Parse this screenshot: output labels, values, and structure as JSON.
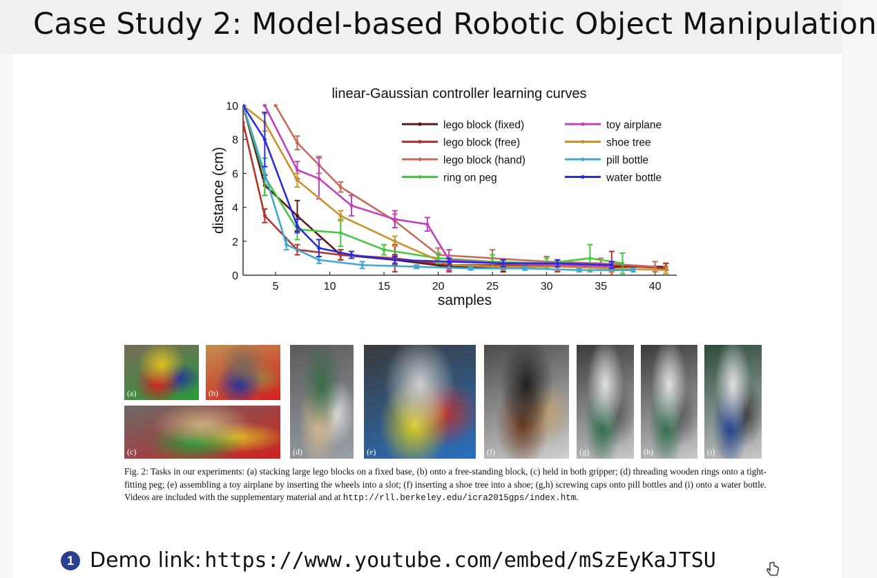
{
  "slide": {
    "title": "Case Study 2: Model-based Robotic Object Manipulation"
  },
  "chart_data": {
    "type": "line",
    "title": "linear-Gaussian controller learning curves",
    "xlabel": "samples",
    "ylabel": "distance (cm)",
    "xlim": [
      2,
      42
    ],
    "ylim": [
      0,
      10
    ],
    "xticks": [
      5,
      10,
      15,
      20,
      25,
      30,
      35,
      40
    ],
    "yticks": [
      0,
      2,
      4,
      6,
      8,
      10
    ],
    "grid": false,
    "legend_position": "top-right",
    "series": [
      {
        "name": "lego block (fixed)",
        "color": "#5c1a14",
        "points": [
          [
            2,
            10
          ],
          [
            4,
            5.3
          ],
          [
            7,
            3.5
          ],
          [
            11,
            1.2
          ],
          [
            16,
            0.9
          ],
          [
            21,
            0.5
          ],
          [
            26,
            0.4
          ],
          [
            31,
            0.6
          ],
          [
            36,
            0.5
          ],
          [
            41,
            0.5
          ]
        ],
        "err": [
          0,
          0.6,
          0.9,
          0.3,
          0.3,
          0.2,
          0.2,
          0.3,
          0.3,
          0.2
        ]
      },
      {
        "name": "lego block (free)",
        "color": "#b8302a",
        "points": [
          [
            2,
            9
          ],
          [
            4,
            3.5
          ],
          [
            7,
            1.5
          ],
          [
            11,
            1.2
          ],
          [
            16,
            1.0
          ],
          [
            21,
            0.6
          ],
          [
            26,
            0.6
          ],
          [
            31,
            0.5
          ],
          [
            36,
            0.6
          ],
          [
            41,
            0.4
          ]
        ],
        "err": [
          0.5,
          0.4,
          0.3,
          0.3,
          0.8,
          0.4,
          0.3,
          0.3,
          0.8,
          0.3
        ]
      },
      {
        "name": "lego block (hand)",
        "color": "#c86a5a",
        "points": [
          [
            5,
            10
          ],
          [
            7,
            7.8
          ],
          [
            9,
            6.5
          ],
          [
            11,
            5.2
          ],
          [
            16,
            3.2
          ],
          [
            20,
            1.2
          ],
          [
            25,
            1.0
          ],
          [
            30,
            0.8
          ],
          [
            35,
            0.7
          ],
          [
            40,
            0.5
          ]
        ],
        "err": [
          0,
          0.4,
          0.5,
          0.3,
          0.4,
          0.4,
          0.5,
          0.3,
          0.3,
          0.3
        ]
      },
      {
        "name": "ring on peg",
        "color": "#45c840",
        "points": [
          [
            2,
            10
          ],
          [
            4,
            5.8
          ],
          [
            7,
            2.7
          ],
          [
            11,
            2.5
          ],
          [
            15,
            1.5
          ],
          [
            20,
            1.0
          ],
          [
            25,
            0.8
          ],
          [
            30,
            0.7
          ],
          [
            34,
            1.0
          ],
          [
            37,
            0.7
          ]
        ],
        "err": [
          0,
          1.1,
          0.6,
          0.8,
          0.3,
          0.3,
          0.4,
          0.3,
          0.8,
          0.6
        ]
      },
      {
        "name": "toy airplane",
        "color": "#c040c0",
        "points": [
          [
            4,
            10
          ],
          [
            7,
            6.2
          ],
          [
            9,
            5.7
          ],
          [
            12,
            4.1
          ],
          [
            16,
            3.3
          ],
          [
            19,
            3.0
          ],
          [
            21,
            0.9
          ],
          [
            26,
            0.7
          ],
          [
            31,
            0.6
          ],
          [
            36,
            0.5
          ]
        ],
        "err": [
          0,
          0.5,
          1.2,
          0.6,
          0.5,
          0.4,
          0.6,
          0.2,
          0.3,
          0.2
        ]
      },
      {
        "name": "shoe tree",
        "color": "#c8922a",
        "points": [
          [
            2,
            10
          ],
          [
            4,
            9
          ],
          [
            7,
            5.6
          ],
          [
            11,
            3.5
          ],
          [
            16,
            2.0
          ],
          [
            21,
            0.6
          ],
          [
            26,
            0.5
          ],
          [
            31,
            0.5
          ],
          [
            36,
            0.4
          ],
          [
            41,
            0.3
          ]
        ],
        "err": [
          0,
          0.5,
          0.4,
          0.3,
          0.3,
          0.2,
          0.2,
          0.2,
          0.2,
          0.2
        ]
      },
      {
        "name": "pill bottle",
        "color": "#40a8d0",
        "points": [
          [
            2,
            10
          ],
          [
            4,
            6
          ],
          [
            6,
            1.8
          ],
          [
            9,
            0.9
          ],
          [
            13,
            0.6
          ],
          [
            18,
            0.5
          ],
          [
            23,
            0.4
          ],
          [
            28,
            0.4
          ],
          [
            33,
            0.3
          ],
          [
            38,
            0.3
          ]
        ],
        "err": [
          0,
          0.4,
          0.3,
          0.2,
          0.2,
          0.1,
          0.1,
          0.1,
          0.1,
          0.1
        ]
      },
      {
        "name": "water bottle",
        "color": "#2a2ae0",
        "points": [
          [
            2,
            10
          ],
          [
            4,
            8
          ],
          [
            7,
            2.9
          ],
          [
            9,
            1.6
          ],
          [
            12,
            1.2
          ],
          [
            16,
            0.9
          ],
          [
            21,
            0.8
          ],
          [
            26,
            0.7
          ],
          [
            31,
            0.7
          ],
          [
            36,
            0.6
          ]
        ],
        "err": [
          0,
          1.6,
          0.4,
          0.5,
          0.2,
          0.2,
          0.2,
          0.2,
          0.2,
          0.2
        ]
      }
    ]
  },
  "photos": [
    {
      "label": "(a)",
      "colors": [
        "#7a6a5a",
        "#2a9a3a",
        "#d02020",
        "#e0c020",
        "#2030a0"
      ]
    },
    {
      "label": "(b)",
      "colors": [
        "#c09050",
        "#d02020",
        "#2030a0",
        "#7a6a5a",
        "#a08040"
      ]
    },
    {
      "label": "(c)",
      "colors": [
        "#6a6a6a",
        "#d02020",
        "#2a9a3a",
        "#c8b080",
        "#e0c020"
      ]
    },
    {
      "label": "(d)",
      "colors": [
        "#5a5a5a",
        "#9aa0a6",
        "#d8b890",
        "#3a6a4a",
        "#e0e0e0"
      ]
    },
    {
      "label": "(e)",
      "colors": [
        "#3a3a3a",
        "#2a70c0",
        "#e0d020",
        "#d0d0d0",
        "#c03030"
      ]
    },
    {
      "label": "(f)",
      "colors": [
        "#4a4a4a",
        "#d0d0d0",
        "#6a3a20",
        "#202020",
        "#c0a070"
      ]
    },
    {
      "label": "(g)",
      "colors": [
        "#3a3a3a",
        "#c8c8c8",
        "#2a6a4a",
        "#e0e0e0",
        "#5a5a5a"
      ]
    },
    {
      "label": "(h)",
      "colors": [
        "#3a3a3a",
        "#c8c8c8",
        "#2a6a4a",
        "#e0e0e0",
        "#5a5a5a"
      ]
    },
    {
      "label": "(i)",
      "colors": [
        "#2a4a3a",
        "#c8c8c8",
        "#1a3a8a",
        "#e0e0e0",
        "#3a3a3a"
      ]
    }
  ],
  "caption": {
    "text": "Fig. 2: Tasks in our experiments: (a) stacking large lego blocks on a fixed base, (b) onto a free-standing block, (c) held in both gripper; (d) threading wooden rings onto a tight-fitting peg; (e) assembling a toy airplane by inserting the wheels into a slot; (f) inserting a shoe tree into a shoe; (g,h) screwing caps onto pill bottles and (i) onto a water bottle. Videos are included with the supplementary material and at",
    "url": "http://rll.berkeley.edu/icra2015gps/index.htm",
    "end": "."
  },
  "demo": {
    "bullet": "1",
    "label": "Demo link:",
    "url": "https://www.youtube.com/embed/mSzEyKaJTSU"
  },
  "icons": {
    "bullet": "numbered-bullet-icon",
    "cursor": "hand-cursor-icon"
  }
}
